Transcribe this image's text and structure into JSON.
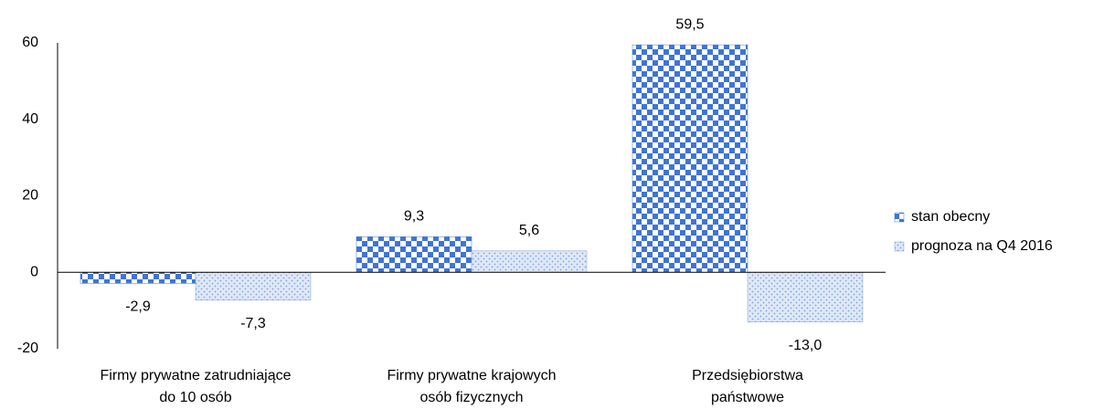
{
  "chart_data": {
    "type": "bar",
    "categories": [
      [
        "Firmy prywatne zatrudniające",
        "do 10 osób"
      ],
      [
        "Firmy prywatne krajowych",
        "osób fizycznych"
      ],
      [
        "Przedsiębiorstwa",
        "państwowe"
      ]
    ],
    "series": [
      {
        "name": "stan obecny",
        "color": "#3f74d6",
        "pattern": "checker",
        "values": [
          -2.9,
          9.3,
          59.5
        ],
        "value_labels": [
          "-2,9",
          "9,3",
          "59,5"
        ]
      },
      {
        "name": "prognoza na Q4 2016",
        "color": "#7fa3e0",
        "pattern": "dots",
        "values": [
          -7.3,
          5.6,
          -13.0
        ],
        "value_labels": [
          "-7,3",
          "5,6",
          "-13,0"
        ]
      }
    ],
    "ylim": [
      -20,
      60
    ],
    "yticks": [
      -20,
      0,
      20,
      40,
      60
    ],
    "grid": false,
    "legend": "right"
  }
}
